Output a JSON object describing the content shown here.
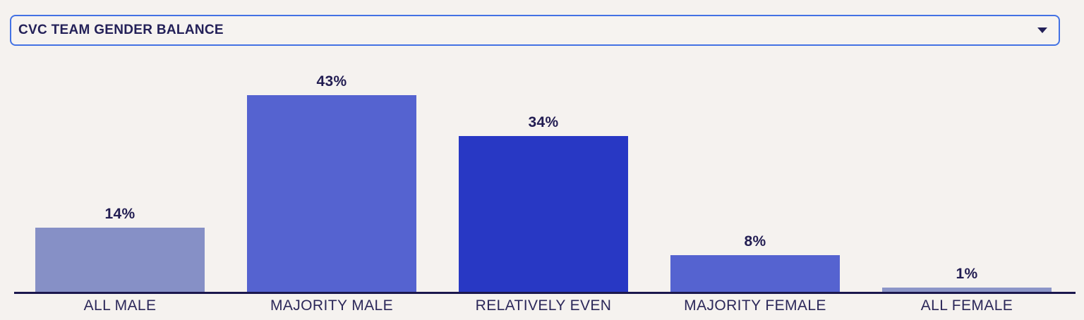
{
  "page": {
    "background": "#F5F2EF"
  },
  "selector": {
    "label": "CVC TEAM GENDER BALANCE",
    "caret_icon": "chevron-down-icon",
    "border_color": "#4372E4",
    "text_color": "#232058"
  },
  "chart_data": {
    "type": "bar",
    "title": "CVC TEAM GENDER BALANCE",
    "categories": [
      "ALL MALE",
      "MAJORITY MALE",
      "RELATIVELY EVEN",
      "MAJORITY FEMALE",
      "ALL FEMALE"
    ],
    "values": [
      14,
      43,
      34,
      8,
      1
    ],
    "value_labels": [
      "14%",
      "43%",
      "34%",
      "8%",
      "1%"
    ],
    "bar_colors": [
      "#8690C6",
      "#5563D0",
      "#2838C4",
      "#5563D0",
      "#8C96C8"
    ],
    "unit": "%",
    "xlabel": "",
    "ylabel": "",
    "ylim": [
      0,
      45
    ],
    "grid": false,
    "legend": false,
    "axis_color": "#1B174D",
    "label_color": "#2B2759",
    "value_label_color": "#221D52"
  }
}
